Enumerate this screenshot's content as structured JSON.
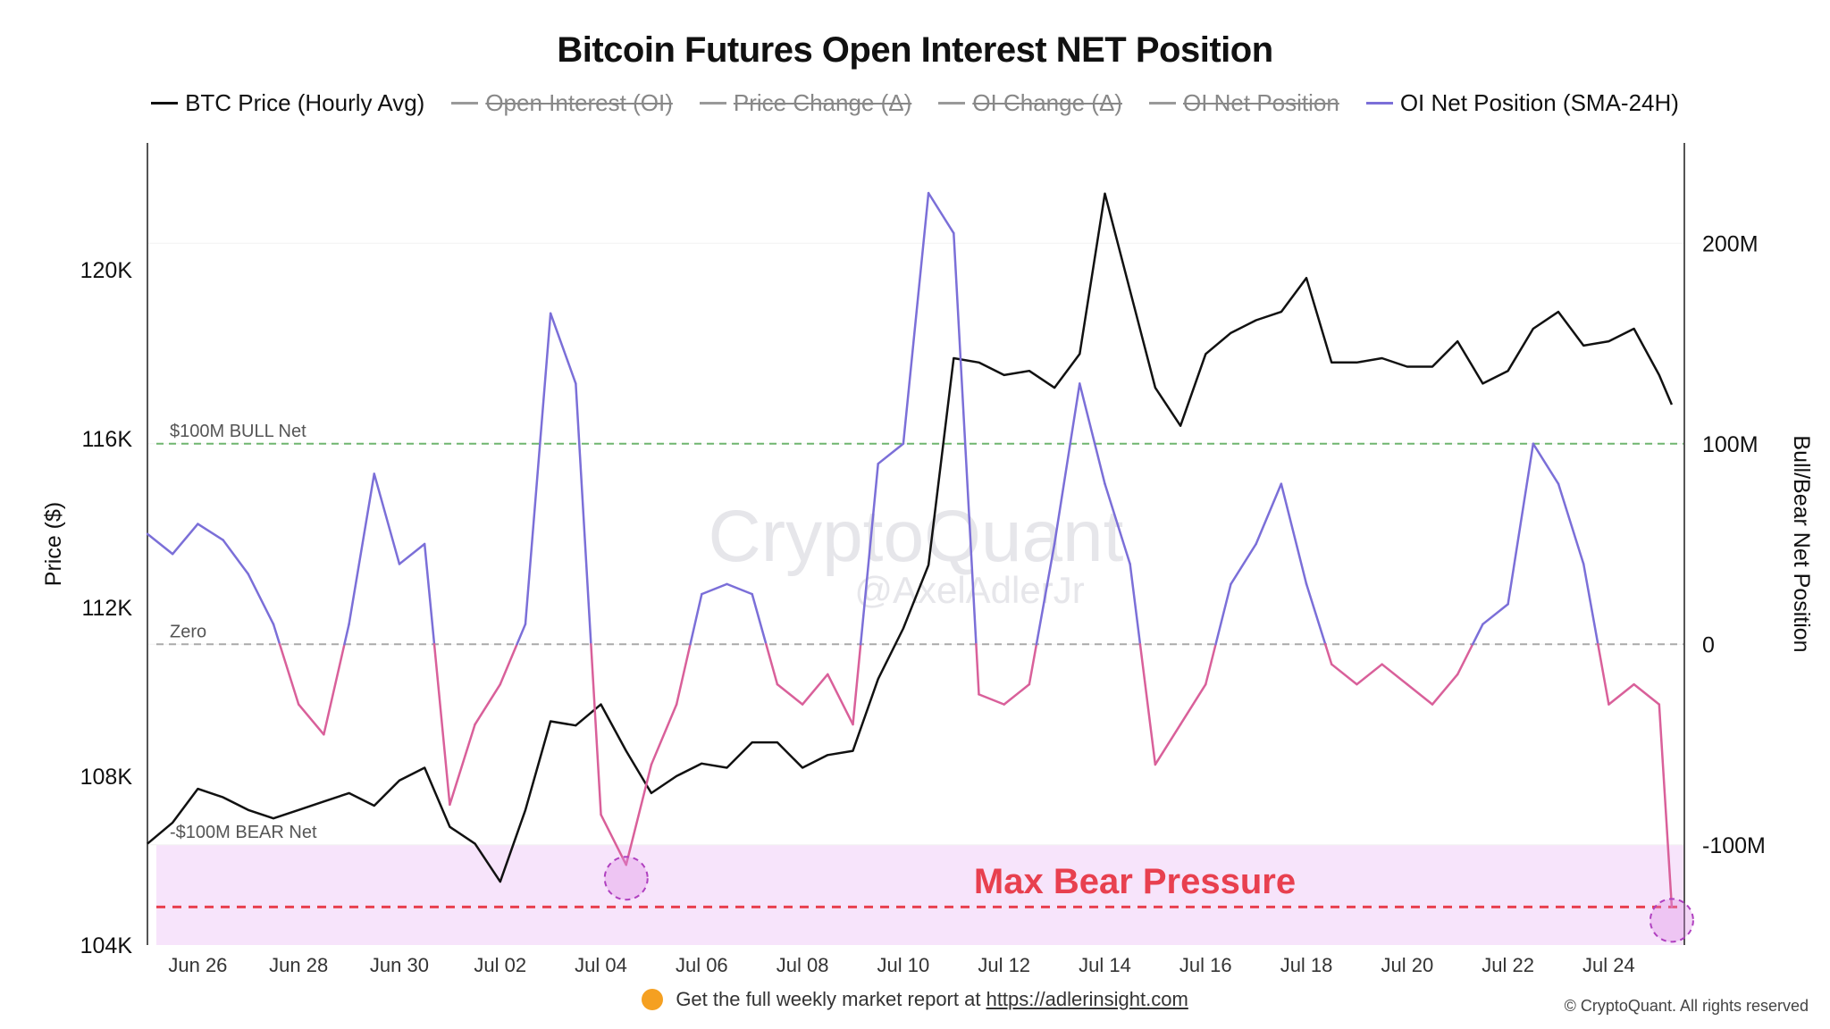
{
  "title": "Bitcoin Futures Open Interest NET Position",
  "legend": [
    {
      "label": "BTC Price (Hourly Avg)",
      "color": "#111111",
      "active": true
    },
    {
      "label": "Open Interest (OI)",
      "color": "#999999",
      "active": false
    },
    {
      "label": "Price Change (Δ)",
      "color": "#999999",
      "active": false
    },
    {
      "label": "OI Change (Δ)",
      "color": "#999999",
      "active": false
    },
    {
      "label": "OI Net Position",
      "color": "#999999",
      "active": false
    },
    {
      "label": "OI Net Position (SMA-24H)",
      "color": "#7b6fd8",
      "active": true
    }
  ],
  "watermark": {
    "line1": "CryptoQuant",
    "line2": "@AxelAdlerJr"
  },
  "footer": {
    "text": "Get the full weekly market report at",
    "link": "https://adlerinsight.com"
  },
  "copyright": "© CryptoQuant. All rights reserved",
  "colors": {
    "price": "#111111",
    "bull": "#7b6fd8",
    "bear": "#d9609a",
    "bull_line": "#6fb56f",
    "zero_line": "#aaaaaa",
    "bear_zone": "#f7e4fb",
    "max_bear": "#e8404f"
  },
  "chart_data": {
    "type": "line",
    "x_tick_labels": [
      "Jun 26",
      "Jun 28",
      "Jun 30",
      "Jul 02",
      "Jul 04",
      "Jul 06",
      "Jul 08",
      "Jul 10",
      "Jul 12",
      "Jul 14",
      "Jul 16",
      "Jul 18",
      "Jul 20",
      "Jul 22",
      "Jul 24"
    ],
    "x_range": [
      "2025-06-25",
      "2025-07-25T12:00"
    ],
    "y_left": {
      "label": "Price ($)",
      "min": 104000,
      "max": 123000,
      "ticks": [
        104000,
        108000,
        112000,
        116000,
        120000
      ],
      "tick_labels": [
        "104K",
        "108K",
        "112K",
        "116K",
        "120K"
      ]
    },
    "y_right": {
      "label": "Bull/Bear Net Position",
      "min": -150000000,
      "max": 250000000,
      "ticks": [
        -100000000,
        0,
        100000000,
        200000000
      ],
      "tick_labels": [
        "-100M",
        "0",
        "100M",
        "200M"
      ]
    },
    "reference_lines": [
      {
        "label": "$100M BULL Net",
        "value": 100000000
      },
      {
        "label": "Zero",
        "value": 0
      },
      {
        "label": "-$100M BEAR Net",
        "value": -100000000
      }
    ],
    "max_bear_level": -131000000,
    "annotation": "Max Bear Pressure",
    "series": [
      {
        "name": "BTC Price (Hourly Avg)",
        "axis": "left",
        "points": [
          [
            "2025-06-25",
            106400
          ],
          [
            "2025-06-25T12:00",
            106900
          ],
          [
            "2025-06-26",
            107700
          ],
          [
            "2025-06-26T12:00",
            107500
          ],
          [
            "2025-06-27",
            107200
          ],
          [
            "2025-06-27T12:00",
            107000
          ],
          [
            "2025-06-28",
            107200
          ],
          [
            "2025-06-28T12:00",
            107400
          ],
          [
            "2025-06-29",
            107600
          ],
          [
            "2025-06-29T12:00",
            107300
          ],
          [
            "2025-06-30",
            107900
          ],
          [
            "2025-06-30T12:00",
            108200
          ],
          [
            "2025-07-01",
            106800
          ],
          [
            "2025-07-01T12:00",
            106400
          ],
          [
            "2025-07-02",
            105500
          ],
          [
            "2025-07-02T12:00",
            107200
          ],
          [
            "2025-07-03",
            109300
          ],
          [
            "2025-07-03T12:00",
            109200
          ],
          [
            "2025-07-04",
            109700
          ],
          [
            "2025-07-04T12:00",
            108600
          ],
          [
            "2025-07-05",
            107600
          ],
          [
            "2025-07-05T12:00",
            108000
          ],
          [
            "2025-07-06",
            108300
          ],
          [
            "2025-07-06T12:00",
            108200
          ],
          [
            "2025-07-07",
            108800
          ],
          [
            "2025-07-07T12:00",
            108800
          ],
          [
            "2025-07-08",
            108200
          ],
          [
            "2025-07-08T12:00",
            108500
          ],
          [
            "2025-07-09",
            108600
          ],
          [
            "2025-07-09T12:00",
            110300
          ],
          [
            "2025-07-10",
            111500
          ],
          [
            "2025-07-10T12:00",
            113000
          ],
          [
            "2025-07-11",
            117900
          ],
          [
            "2025-07-11T12:00",
            117800
          ],
          [
            "2025-07-12",
            117500
          ],
          [
            "2025-07-12T12:00",
            117600
          ],
          [
            "2025-07-13",
            117200
          ],
          [
            "2025-07-13T12:00",
            118000
          ],
          [
            "2025-07-14",
            121800
          ],
          [
            "2025-07-14T12:00",
            119500
          ],
          [
            "2025-07-15",
            117200
          ],
          [
            "2025-07-15T12:00",
            116300
          ],
          [
            "2025-07-16",
            118000
          ],
          [
            "2025-07-16T12:00",
            118500
          ],
          [
            "2025-07-17",
            118800
          ],
          [
            "2025-07-17T12:00",
            119000
          ],
          [
            "2025-07-18",
            119800
          ],
          [
            "2025-07-18T12:00",
            117800
          ],
          [
            "2025-07-19",
            117800
          ],
          [
            "2025-07-19T12:00",
            117900
          ],
          [
            "2025-07-20",
            117700
          ],
          [
            "2025-07-20T12:00",
            117700
          ],
          [
            "2025-07-21",
            118300
          ],
          [
            "2025-07-21T12:00",
            117300
          ],
          [
            "2025-07-22",
            117600
          ],
          [
            "2025-07-22T12:00",
            118600
          ],
          [
            "2025-07-23",
            119000
          ],
          [
            "2025-07-23T12:00",
            118200
          ],
          [
            "2025-07-24",
            118300
          ],
          [
            "2025-07-24T12:00",
            118600
          ],
          [
            "2025-07-25",
            117500
          ],
          [
            "2025-07-25T06:00",
            116800
          ]
        ]
      },
      {
        "name": "OI Net Position (SMA-24H)",
        "axis": "right",
        "points": [
          [
            "2025-06-25",
            55000000
          ],
          [
            "2025-06-25T12:00",
            45000000
          ],
          [
            "2025-06-26",
            60000000
          ],
          [
            "2025-06-26T12:00",
            52000000
          ],
          [
            "2025-06-27",
            35000000
          ],
          [
            "2025-06-27T12:00",
            10000000
          ],
          [
            "2025-06-28",
            -30000000
          ],
          [
            "2025-06-28T12:00",
            -45000000
          ],
          [
            "2025-06-29",
            10000000
          ],
          [
            "2025-06-29T12:00",
            85000000
          ],
          [
            "2025-06-30",
            40000000
          ],
          [
            "2025-06-30T12:00",
            50000000
          ],
          [
            "2025-07-01",
            -80000000
          ],
          [
            "2025-07-01T12:00",
            -40000000
          ],
          [
            "2025-07-02",
            -20000000
          ],
          [
            "2025-07-02T12:00",
            10000000
          ],
          [
            "2025-07-03",
            165000000
          ],
          [
            "2025-07-03T12:00",
            130000000
          ],
          [
            "2025-07-04",
            -85000000
          ],
          [
            "2025-07-04T12:00",
            -110000000
          ],
          [
            "2025-07-05",
            -60000000
          ],
          [
            "2025-07-05T12:00",
            -30000000
          ],
          [
            "2025-07-06",
            25000000
          ],
          [
            "2025-07-06T12:00",
            30000000
          ],
          [
            "2025-07-07",
            25000000
          ],
          [
            "2025-07-07T12:00",
            -20000000
          ],
          [
            "2025-07-08",
            -30000000
          ],
          [
            "2025-07-08T12:00",
            -15000000
          ],
          [
            "2025-07-09",
            -40000000
          ],
          [
            "2025-07-09T12:00",
            90000000
          ],
          [
            "2025-07-10",
            100000000
          ],
          [
            "2025-07-10T12:00",
            225000000
          ],
          [
            "2025-07-11",
            205000000
          ],
          [
            "2025-07-11T12:00",
            -25000000
          ],
          [
            "2025-07-12",
            -30000000
          ],
          [
            "2025-07-12T12:00",
            -20000000
          ],
          [
            "2025-07-13",
            50000000
          ],
          [
            "2025-07-13T12:00",
            130000000
          ],
          [
            "2025-07-14",
            80000000
          ],
          [
            "2025-07-14T12:00",
            40000000
          ],
          [
            "2025-07-15",
            -60000000
          ],
          [
            "2025-07-15T12:00",
            -40000000
          ],
          [
            "2025-07-16",
            -20000000
          ],
          [
            "2025-07-16T12:00",
            30000000
          ],
          [
            "2025-07-17",
            50000000
          ],
          [
            "2025-07-17T12:00",
            80000000
          ],
          [
            "2025-07-18",
            30000000
          ],
          [
            "2025-07-18T12:00",
            -10000000
          ],
          [
            "2025-07-19",
            -20000000
          ],
          [
            "2025-07-19T12:00",
            -10000000
          ],
          [
            "2025-07-20",
            -20000000
          ],
          [
            "2025-07-20T12:00",
            -30000000
          ],
          [
            "2025-07-21",
            -15000000
          ],
          [
            "2025-07-21T12:00",
            10000000
          ],
          [
            "2025-07-22",
            20000000
          ],
          [
            "2025-07-22T12:00",
            100000000
          ],
          [
            "2025-07-23",
            80000000
          ],
          [
            "2025-07-23T12:00",
            40000000
          ],
          [
            "2025-07-24",
            -30000000
          ],
          [
            "2025-07-24T12:00",
            -20000000
          ],
          [
            "2025-07-25",
            -30000000
          ],
          [
            "2025-07-25T06:00",
            -131000000
          ]
        ]
      }
    ]
  }
}
